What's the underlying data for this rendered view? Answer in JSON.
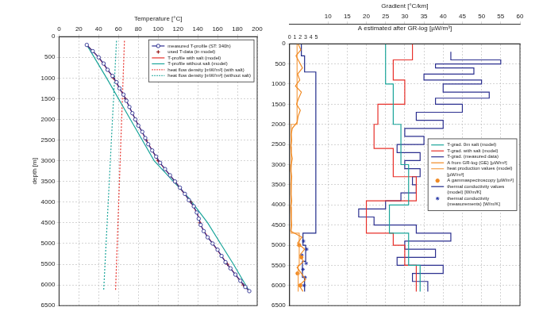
{
  "chart_data": [
    {
      "type": "scatter",
      "xlabel": "Temperature [°C]",
      "ylabel": "depth [m]",
      "xlim": [
        0,
        200
      ],
      "xticks": [
        0,
        20,
        40,
        60,
        80,
        100,
        120,
        140,
        160,
        180,
        200
      ],
      "ylim": [
        6500,
        0
      ],
      "yticks": [
        0,
        500,
        1000,
        1500,
        2000,
        2500,
        3000,
        3500,
        4000,
        4500,
        5000,
        5500,
        6000,
        6500
      ],
      "grid": true,
      "legend": "upper right",
      "series": [
        {
          "name": "measured T-profile (ST: 340h)",
          "color": "#2e3192",
          "marker": "open_circle",
          "line_style": "solid",
          "x": [
            28,
            34,
            40,
            45,
            49,
            54,
            58,
            61,
            65,
            68,
            71,
            74,
            77,
            80,
            84,
            87,
            90,
            94,
            98,
            102,
            107,
            112,
            117,
            122,
            127,
            131,
            136,
            139,
            141,
            143,
            146,
            150,
            155,
            160,
            164,
            168,
            173,
            178,
            183,
            188,
            192
          ],
          "y": [
            200,
            350,
            500,
            650,
            800,
            950,
            1100,
            1250,
            1400,
            1550,
            1700,
            1850,
            2000,
            2150,
            2300,
            2450,
            2600,
            2750,
            2900,
            3050,
            3200,
            3350,
            3500,
            3650,
            3800,
            3950,
            4100,
            4250,
            4400,
            4550,
            4700,
            4850,
            5000,
            5150,
            5300,
            5450,
            5600,
            5750,
            5900,
            6050,
            6150
          ]
        },
        {
          "name": "used T-data (in model)",
          "color": "#8b0000",
          "marker": "plus",
          "line_style": "none",
          "x": [
            40,
            55,
            67,
            77,
            88,
            100,
            117,
            133,
            142,
            155,
            170,
            186
          ],
          "y": [
            500,
            1000,
            1500,
            2000,
            2500,
            3000,
            3500,
            4000,
            4500,
            5000,
            5500,
            6000
          ]
        },
        {
          "name": "T-profile with salt (model)",
          "color": "#e8302a",
          "marker": "none",
          "line_style": "solid",
          "x": [
            28,
            40,
            55,
            67,
            77,
            88,
            100,
            117,
            133,
            140,
            144,
            149,
            155,
            170,
            186,
            192
          ],
          "y": [
            200,
            500,
            1000,
            1500,
            2000,
            2500,
            3000,
            3500,
            4000,
            4300,
            4600,
            4800,
            5000,
            5500,
            6000,
            6150
          ]
        },
        {
          "name": "T-profile without salt (model)",
          "color": "#1aa59a",
          "marker": "none",
          "line_style": "solid",
          "x": [
            28,
            48,
            72,
            96,
            131,
            150,
            163,
            176,
            192
          ],
          "y": [
            200,
            1000,
            2000,
            3000,
            3900,
            4500,
            5000,
            5500,
            6150
          ]
        },
        {
          "name": "heat flow density [mW/m²] (with salt)",
          "color": "#e8302a",
          "marker": "none",
          "line_style": "dotted",
          "x": [
            66,
            57
          ],
          "y": [
            100,
            6150
          ]
        },
        {
          "name": "heat flow density [mW/m²] (without salt)",
          "color": "#1aa59a",
          "marker": "none",
          "line_style": "dotted",
          "x": [
            58,
            45
          ],
          "y": [
            100,
            6150
          ]
        }
      ]
    },
    {
      "type": "scatter",
      "xlabel": "Gradient [°C/km]",
      "x2label": "A estimated after GR-log [µW/m³]",
      "xlim": [
        0,
        60
      ],
      "xticks": [
        10,
        15,
        20,
        25,
        30,
        35,
        40,
        45,
        50,
        55,
        60
      ],
      "x2lim": [
        0,
        43
      ],
      "x2ticks": [
        0,
        1,
        2,
        3,
        4,
        5
      ],
      "ylim": [
        6500,
        0
      ],
      "yticks": [
        0,
        500,
        1000,
        1500,
        2000,
        2500,
        3000,
        3500,
        4000,
        4500,
        5000,
        5500,
        6000,
        6500
      ],
      "grid": true,
      "legend": "center right",
      "series": [
        {
          "name": "T-grad. 0m salt (model)",
          "color": "#1aa59a",
          "marker": "none",
          "line_style": "solid",
          "x": [
            25,
            25,
            27,
            27,
            29,
            29,
            31,
            31,
            26,
            26,
            31,
            31,
            34,
            34
          ],
          "y": [
            0,
            1000,
            1000,
            2000,
            2000,
            3000,
            3000,
            4000,
            4000,
            4700,
            4700,
            5500,
            5500,
            6150
          ]
        },
        {
          "name": "T-grad. with salt (model)",
          "color": "#e8302a",
          "marker": "none",
          "line_style": "solid",
          "x": [
            32,
            32,
            27,
            27,
            30,
            30,
            23,
            23,
            22,
            22,
            27,
            27,
            33,
            33,
            20,
            20,
            27,
            27,
            30,
            30,
            33,
            33
          ],
          "y": [
            0,
            400,
            400,
            900,
            900,
            1500,
            1500,
            2000,
            2000,
            2600,
            2600,
            3300,
            3300,
            3900,
            3900,
            4700,
            4700,
            5000,
            5000,
            5500,
            5500,
            6150
          ]
        },
        {
          "name": "T-grad. (measured data)",
          "color": "#2b2f8f",
          "marker": "none",
          "line_style": "solid",
          "x": [
            42,
            42,
            55,
            55,
            38,
            38,
            48,
            48,
            35,
            35,
            50,
            50,
            40,
            40,
            52,
            52,
            38,
            38,
            45,
            45,
            33,
            33,
            40,
            40,
            30,
            30,
            35,
            35,
            28,
            28,
            34,
            34,
            30,
            30,
            34,
            34,
            32,
            32,
            33,
            33,
            29,
            29,
            25,
            25,
            18,
            18,
            22,
            22,
            33,
            33,
            42,
            42,
            30,
            30,
            38,
            38,
            28,
            28,
            40,
            40,
            32,
            32,
            36,
            36
          ],
          "y": [
            200,
            400,
            400,
            500,
            500,
            600,
            600,
            750,
            750,
            900,
            900,
            1000,
            1000,
            1200,
            1200,
            1350,
            1350,
            1500,
            1500,
            1700,
            1700,
            1900,
            1900,
            2100,
            2100,
            2300,
            2300,
            2500,
            2500,
            2700,
            2700,
            2900,
            2900,
            3100,
            3100,
            3300,
            3300,
            3500,
            3500,
            3700,
            3700,
            3900,
            3900,
            4100,
            4100,
            4300,
            4300,
            4500,
            4500,
            4700,
            4700,
            4900,
            4900,
            5100,
            5100,
            5300,
            5300,
            5500,
            5500,
            5700,
            5700,
            5900,
            5900,
            6150
          ]
        },
        {
          "name": "A from GR-log (GE) [µW/m³]",
          "color": "#f08a24",
          "marker": "none",
          "line_style": "solid",
          "axis": "x2",
          "x": [
            1.6,
            2.1,
            1.2,
            1.8,
            2.4,
            1.5,
            1.9,
            1.1,
            2.2,
            1.7,
            1.3,
            2.0,
            1.6,
            1.4,
            0.5,
            0.3,
            0.4,
            0.2,
            0.3,
            0.5,
            0.3,
            0.2,
            0.4,
            0.3,
            0.2,
            0.3,
            0.4,
            0.2,
            0.3,
            0.3,
            0.4,
            0.2,
            2.3,
            1.5,
            2.8,
            1.9,
            2.6,
            1.4,
            2.2,
            3.0,
            1.8,
            2.5
          ],
          "y": [
            0,
            150,
            300,
            450,
            600,
            750,
            900,
            1050,
            1200,
            1350,
            1500,
            1650,
            1800,
            1950,
            2100,
            2250,
            2400,
            2550,
            2700,
            2850,
            3000,
            3150,
            3300,
            3450,
            3600,
            3750,
            3900,
            4050,
            4200,
            4350,
            4500,
            4650,
            4800,
            4950,
            5100,
            5250,
            5400,
            5550,
            5700,
            5850,
            6000,
            6150
          ]
        },
        {
          "name": "heat production values (model) [µW/m³]",
          "color": "#f5a04a",
          "marker": "none",
          "line_style": "solid",
          "axis": "x2",
          "x": [
            1.4,
            1.4,
            0.3,
            0.3,
            1.8,
            1.8,
            1.6,
            1.6
          ],
          "y": [
            0,
            2000,
            2000,
            4700,
            4700,
            5500,
            5500,
            6150
          ]
        },
        {
          "name": "A gammaspectroscopy [µW/m³]",
          "color": "#f08a24",
          "marker": "circle",
          "line_style": "none",
          "axis": "x2",
          "x": [
            1.8,
            2.2,
            1.5,
            2.0
          ],
          "y": [
            5000,
            5300,
            5700,
            6000
          ]
        },
        {
          "name": "thermal conductivity values (model) [W/m/K]",
          "color": "#1f2a8a",
          "marker": "none",
          "line_style": "solid",
          "axis": "x2",
          "x": [
            2.2,
            2.2,
            2.8,
            2.8,
            4.9,
            4.9,
            2.5,
            2.5,
            3.0,
            3.0,
            2.4,
            2.4,
            2.8,
            2.8
          ],
          "y": [
            0,
            300,
            300,
            700,
            700,
            4700,
            4700,
            5000,
            5000,
            5400,
            5400,
            5800,
            5800,
            6150
          ]
        },
        {
          "name": "thermal conductivity (measurements) [W/m/K]",
          "color": "#2b3aa8",
          "marker": "star",
          "line_style": "none",
          "axis": "x2",
          "x": [
            2.6,
            3.2,
            2.3,
            3.1,
            2.5,
            2.9,
            2.7
          ],
          "y": [
            4900,
            5100,
            5250,
            5450,
            5600,
            5800,
            6000
          ]
        }
      ]
    }
  ]
}
